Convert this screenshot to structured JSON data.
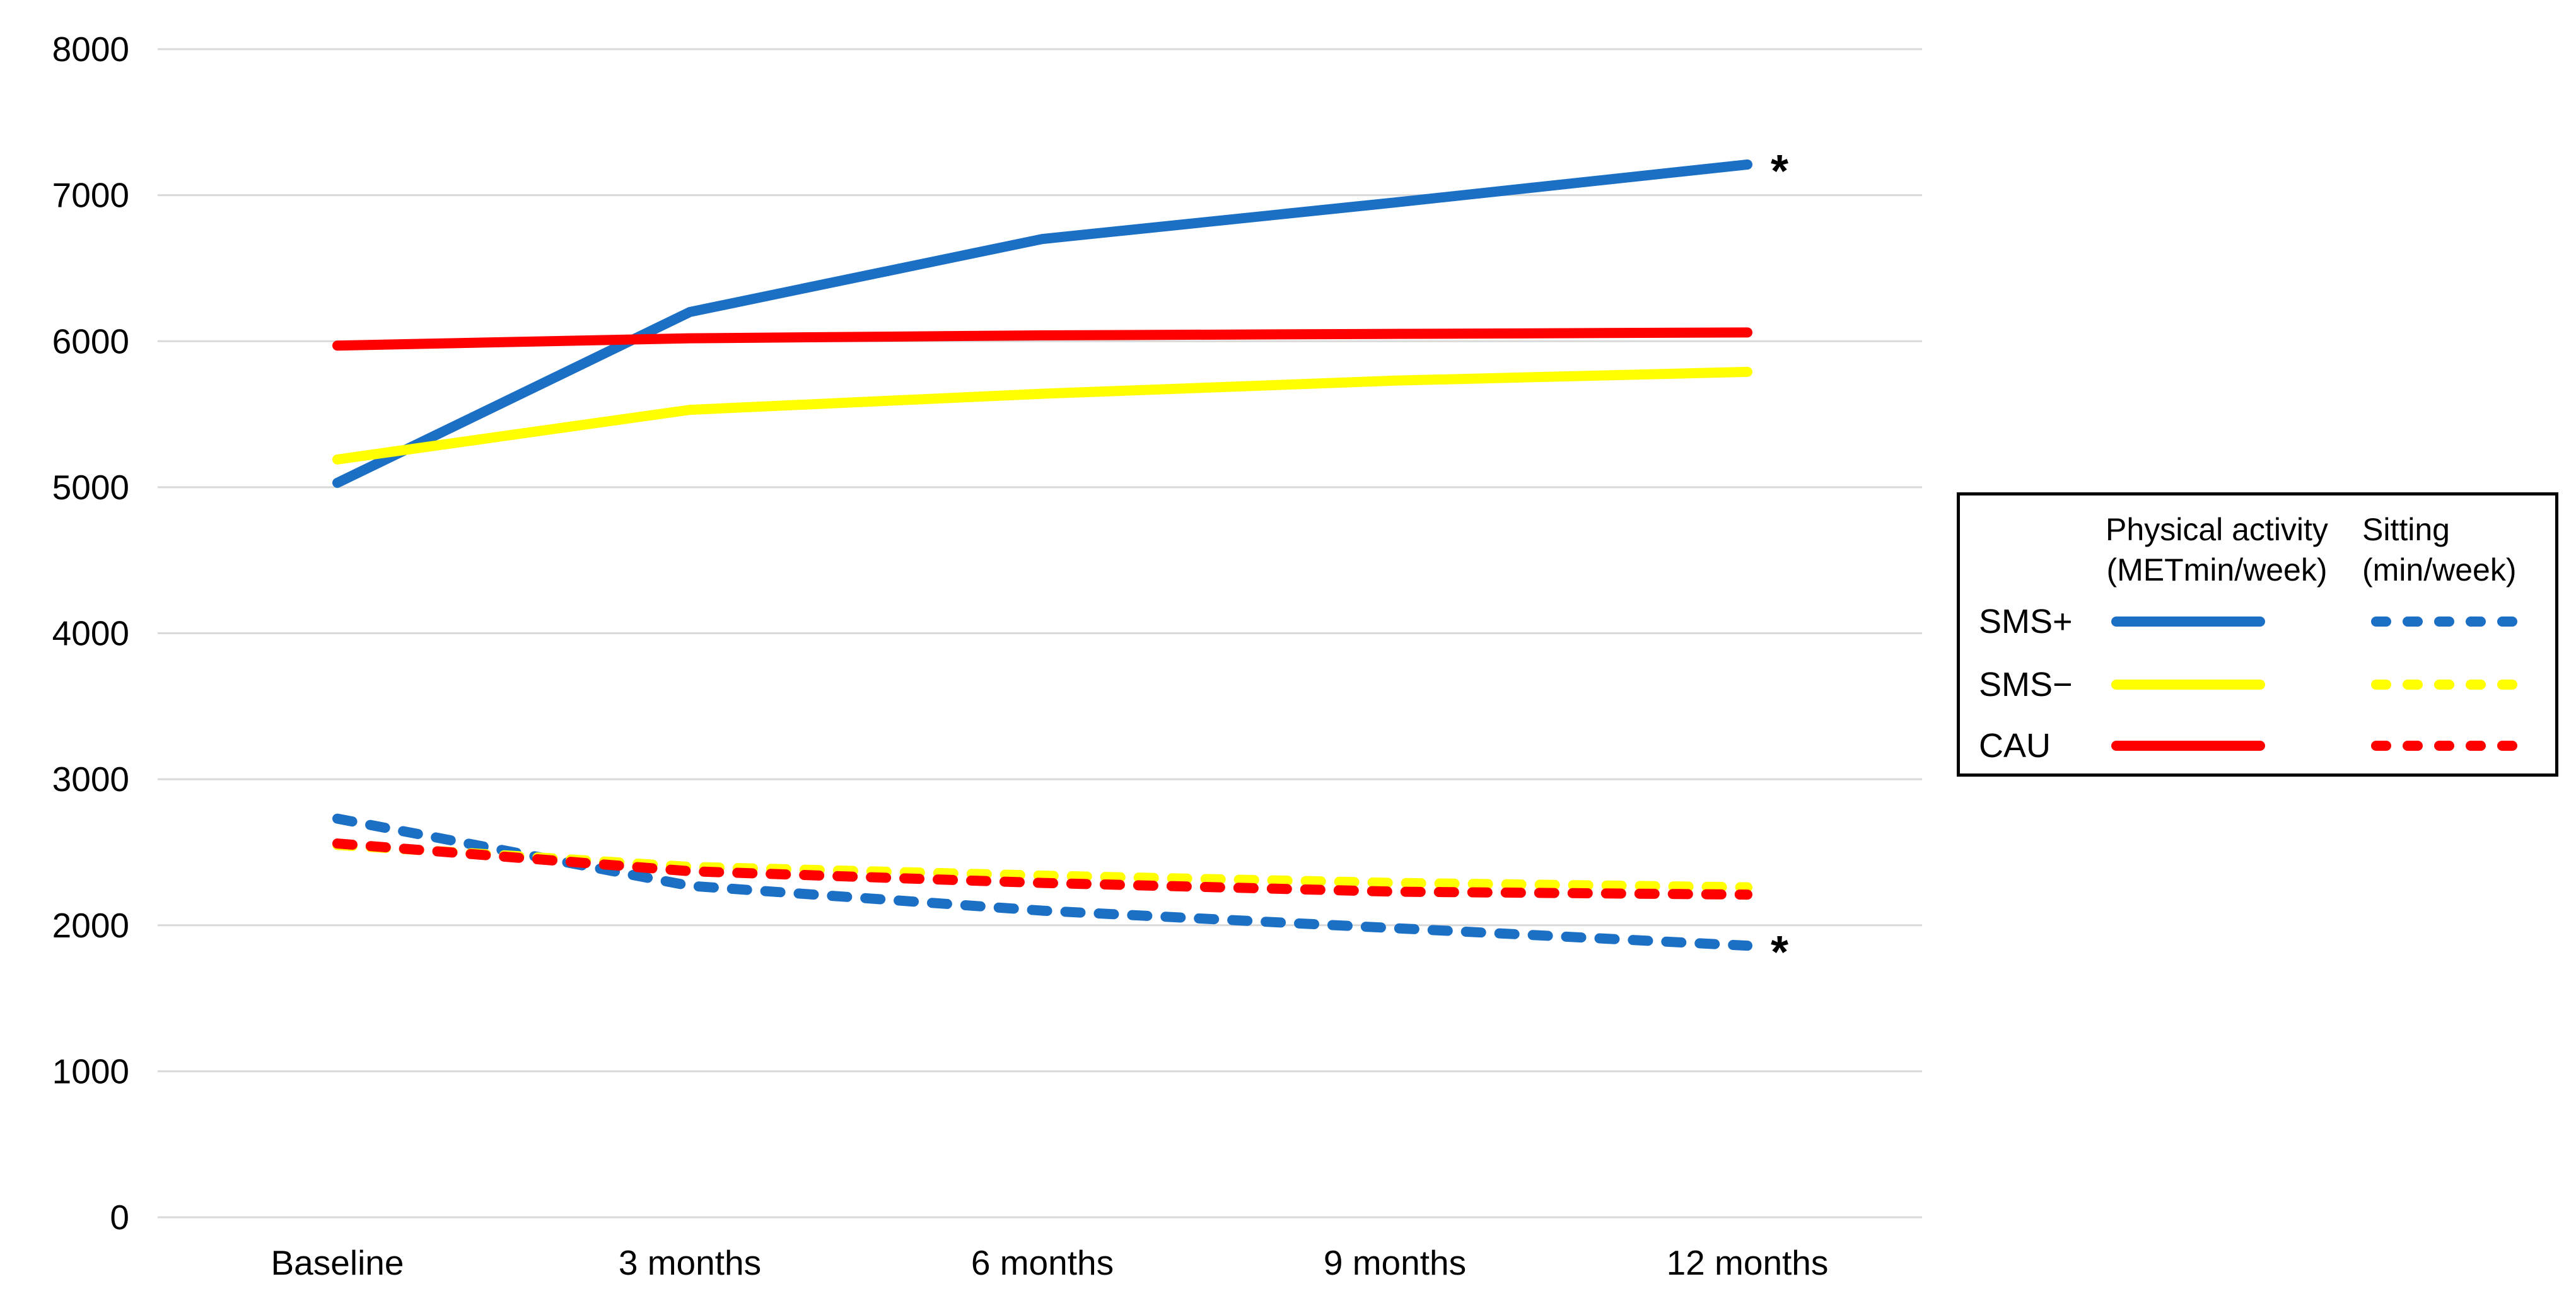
{
  "chart_data": {
    "type": "line",
    "x_categories": [
      "Baseline",
      "3 months",
      "6 months",
      "9 months",
      "12 months"
    ],
    "y_axis": {
      "min": 0,
      "max": 8000,
      "tick_step": 1000,
      "tick_labels": [
        "0",
        "1000",
        "2000",
        "3000",
        "4000",
        "5000",
        "6000",
        "7000",
        "8000"
      ]
    },
    "grid": true,
    "legend_position": "right",
    "series": [
      {
        "id": "sms_plus_pa",
        "name": "SMS+",
        "measure": "Physical activity (METmin/week)",
        "style": "solid",
        "color": "#1b6fc4",
        "values": [
          5030,
          6200,
          6700,
          6950,
          7210
        ]
      },
      {
        "id": "sms_minus_pa",
        "name": "SMS−",
        "measure": "Physical activity (METmin/week)",
        "style": "solid",
        "color": "#ffff00",
        "values": [
          5190,
          5530,
          5640,
          5730,
          5790
        ]
      },
      {
        "id": "cau_pa",
        "name": "CAU",
        "measure": "Physical activity (METmin/week)",
        "style": "solid",
        "color": "#ff0000",
        "values": [
          5970,
          6020,
          6040,
          6050,
          6060
        ]
      },
      {
        "id": "sms_plus_sit",
        "name": "SMS+",
        "measure": "Sitting (min/week)",
        "style": "dashed",
        "color": "#1b6fc4",
        "values": [
          2730,
          2270,
          2100,
          1980,
          1860
        ]
      },
      {
        "id": "sms_minus_sit",
        "name": "SMS−",
        "measure": "Sitting (min/week)",
        "style": "dashed",
        "color": "#ffff00",
        "values": [
          2550,
          2400,
          2340,
          2290,
          2260
        ]
      },
      {
        "id": "cau_sit",
        "name": "CAU",
        "measure": "Sitting (min/week)",
        "style": "dashed",
        "color": "#ff0000",
        "values": [
          2560,
          2370,
          2290,
          2230,
          2210
        ]
      }
    ],
    "annotations": [
      {
        "text": "*",
        "series_id": "sms_plus_pa",
        "at": "12 months"
      },
      {
        "text": "*",
        "series_id": "sms_plus_sit",
        "at": "12 months"
      }
    ]
  },
  "legend": {
    "col1_header_line1": "Physical activity",
    "col1_header_line2": "(METmin/week)",
    "col2_header_line1": "Sitting",
    "col2_header_line2": "(min/week)",
    "rows": [
      {
        "label": "SMS+"
      },
      {
        "label": "SMS−"
      },
      {
        "label": "CAU"
      }
    ]
  },
  "colors": {
    "background": "#ffffff",
    "gridline": "#d9d9d9",
    "axis_text": "#000000",
    "annotation": "#000000",
    "legend_border": "#000000"
  }
}
